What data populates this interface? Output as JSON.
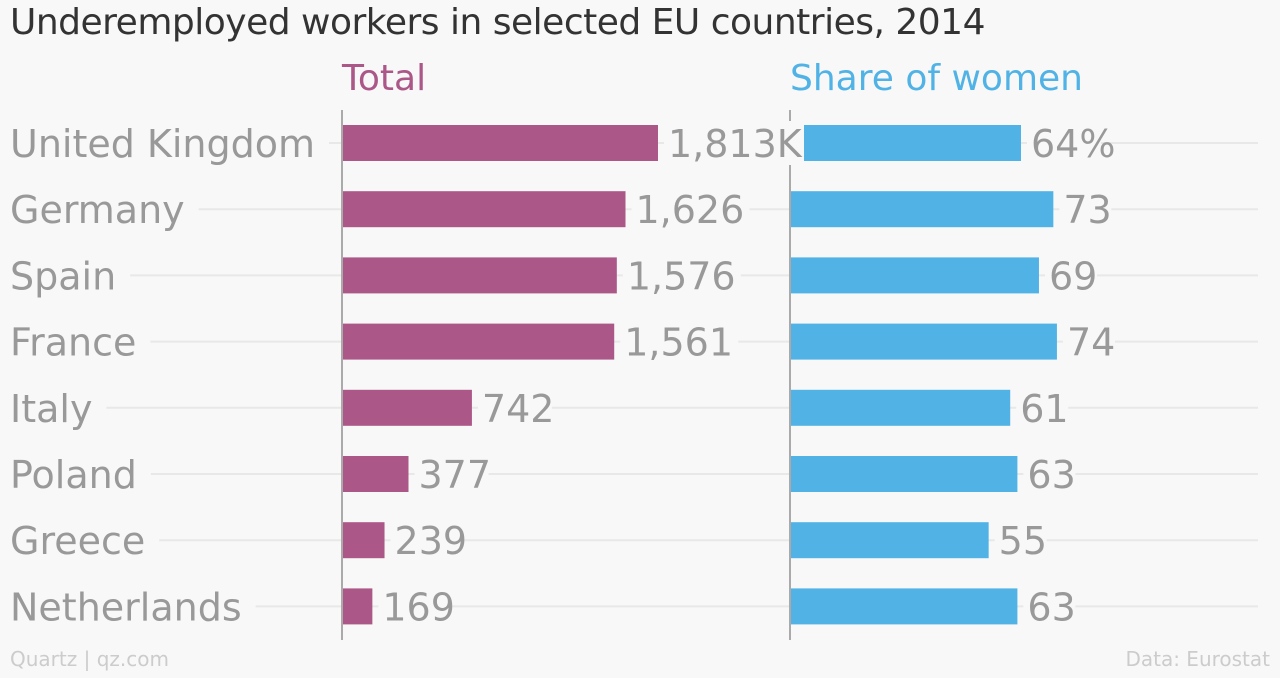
{
  "chart_data": {
    "type": "bar",
    "title": "Underemployed workers in selected EU countries, 2014",
    "categories": [
      "United Kingdom",
      "Germany",
      "Spain",
      "France",
      "Italy",
      "Poland",
      "Greece",
      "Netherlands"
    ],
    "series": [
      {
        "name": "Total",
        "values": [
          1813,
          1626,
          1576,
          1561,
          742,
          377,
          239,
          169
        ],
        "labels": [
          "1,813K",
          "1,626",
          "1,576",
          "1,561",
          "742",
          "377",
          "239",
          "169"
        ],
        "color": "#ab5787",
        "xlim": [
          0,
          2000
        ]
      },
      {
        "name": "Share of women",
        "values": [
          64,
          73,
          69,
          74,
          61,
          63,
          55,
          63
        ],
        "labels": [
          "64%",
          "73",
          "69",
          "74",
          "61",
          "63",
          "55",
          "63"
        ],
        "color": "#51b2e5",
        "xlim": [
          0,
          80
        ]
      }
    ],
    "orientation": "horizontal",
    "grid": true
  },
  "footer": {
    "source_left": "Quartz | qz.com",
    "source_right": "Data: Eurostat"
  },
  "colors": {
    "title": "#333333",
    "category_label": "#999999",
    "value_label": "#999999",
    "grid": "#e8e8e8",
    "axis": "#aaaaaa",
    "footer": "#cccccc"
  }
}
